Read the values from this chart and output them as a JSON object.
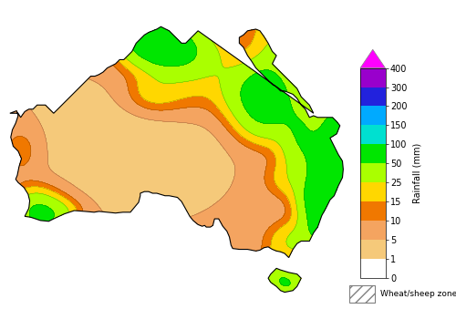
{
  "colorbar_label": "Rainfall (mm)",
  "colorbar_ticks": [
    0,
    1,
    5,
    10,
    15,
    25,
    50,
    100,
    150,
    200,
    300,
    400
  ],
  "colorbar_colors": [
    "#ffffff",
    "#f5c97a",
    "#f4a460",
    "#f07800",
    "#ffd700",
    "#aaff00",
    "#00e600",
    "#00e0d0",
    "#00aaff",
    "#2222dd",
    "#9900cc",
    "#ff00ff"
  ],
  "background_color": "#ffffff",
  "fig_width": 5.0,
  "fig_height": 3.39,
  "dpi": 100,
  "lon_min": 112,
  "lon_max": 154,
  "lat_min": -44,
  "lat_max": -10
}
